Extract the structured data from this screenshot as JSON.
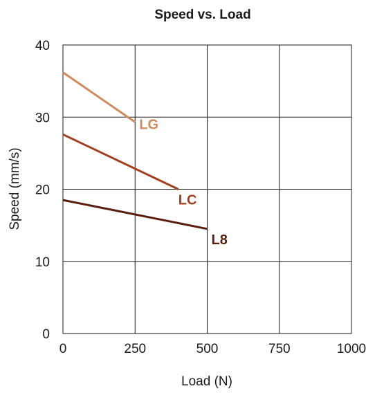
{
  "chart_data": {
    "type": "line",
    "title": "Speed vs. Load",
    "xlabel": "Load (N)",
    "ylabel": "Speed (mm/s)",
    "xlim": [
      0,
      1000
    ],
    "ylim": [
      0,
      40
    ],
    "x_ticks": [
      "0",
      "250",
      "500",
      "750",
      "1000"
    ],
    "y_ticks": [
      "0",
      "10",
      "20",
      "30",
      "40"
    ],
    "grid": true,
    "legend": "none (series labeled at line ends)",
    "series": [
      {
        "name": "LG",
        "color": "#d08a5e",
        "x": [
          0,
          250
        ],
        "y": [
          36.2,
          29.3
        ]
      },
      {
        "name": "LC",
        "color": "#a0401f",
        "x": [
          0,
          400
        ],
        "y": [
          27.6,
          20.0
        ]
      },
      {
        "name": "L8",
        "color": "#5a1e0c",
        "x": [
          0,
          500
        ],
        "y": [
          18.5,
          14.5
        ]
      }
    ]
  }
}
